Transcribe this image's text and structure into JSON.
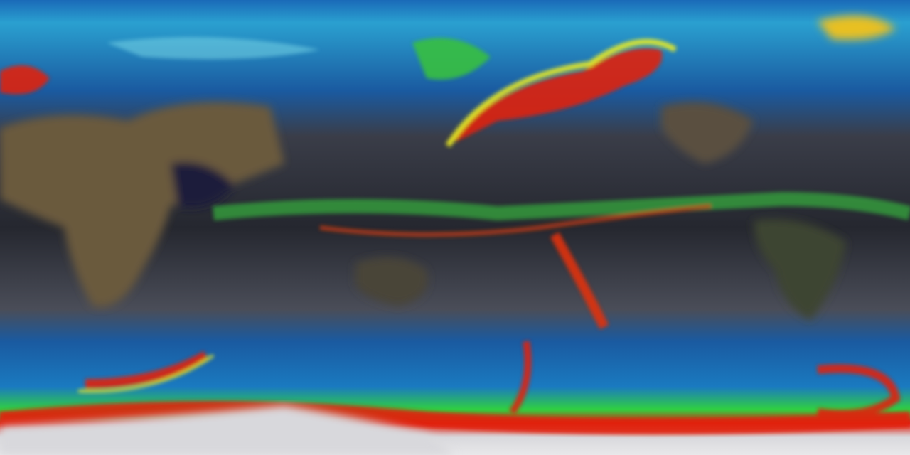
{
  "map": {
    "projection": "equirectangular",
    "layers": [
      "satellite-base",
      "precipitation-overlay"
    ],
    "colors": {
      "ocean": "#1e2030",
      "cloud_gray": "#6a6d78",
      "land": "#6b5a3e",
      "antarctica": "#d8d8dc",
      "low": "#1a4fa8",
      "mid_low": "#18b0d8",
      "mid": "#38e040",
      "mid_high": "#f0f020",
      "high": "#e02010",
      "very_high": "#8a0a0a"
    }
  }
}
